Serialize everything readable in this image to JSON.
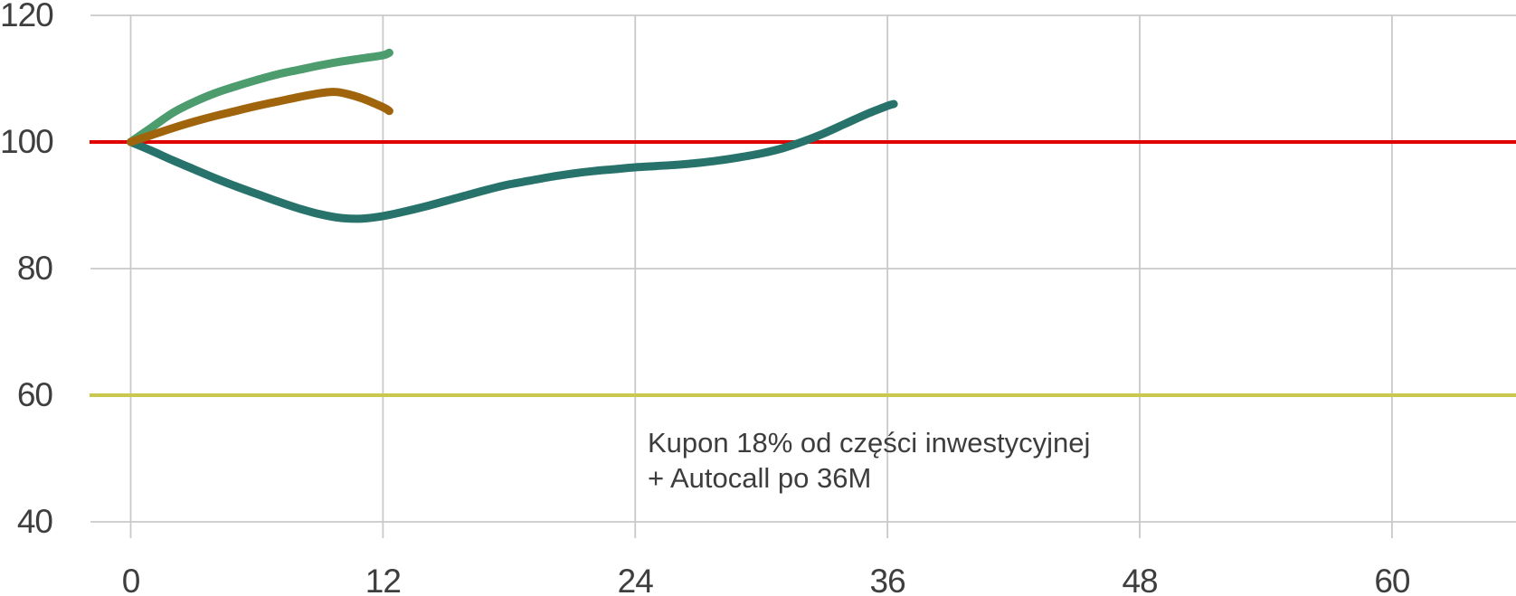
{
  "chart_data": {
    "type": "line",
    "title": "",
    "xlabel": "",
    "ylabel": "",
    "grid": true,
    "grid_color": "#c9c9c9",
    "axis_text_color": "#3e3e3e",
    "x_axis": {
      "ticks": [
        0,
        12,
        24,
        36,
        48,
        60
      ],
      "min": 0,
      "max": 66
    },
    "y_axis": {
      "ticks": [
        120,
        100,
        80,
        60,
        40
      ],
      "min": 40,
      "max": 120
    },
    "reference_lines": [
      {
        "id": "red-reference-line-100",
        "value": 100,
        "color": "#e10000"
      },
      {
        "id": "olive-reference-line-60",
        "value": 60,
        "color": "#c9c84f"
      }
    ],
    "series": [
      {
        "id": "green-line",
        "color": "#4c9c6e",
        "x": [
          0,
          1,
          2,
          3,
          4,
          5,
          6,
          7,
          8,
          9,
          10,
          11,
          12,
          12.3
        ],
        "values": [
          100,
          102.3,
          104.6,
          106.3,
          107.7,
          108.8,
          109.8,
          110.7,
          111.4,
          112.1,
          112.7,
          113.2,
          113.7,
          114.1
        ]
      },
      {
        "id": "teal-line",
        "color": "#27736c",
        "x": [
          0,
          1,
          2,
          3,
          4,
          5,
          6,
          7,
          8,
          9,
          10,
          11,
          12,
          13,
          14,
          15,
          16,
          17,
          18,
          19,
          20,
          21,
          22,
          23,
          24,
          25,
          26,
          27,
          28,
          29,
          30,
          31,
          32,
          33,
          34,
          35,
          36,
          36.3
        ],
        "values": [
          100,
          98.6,
          97.1,
          95.7,
          94.3,
          93.0,
          91.8,
          90.6,
          89.5,
          88.6,
          88.0,
          87.9,
          88.3,
          89.0,
          89.8,
          90.7,
          91.6,
          92.5,
          93.3,
          93.9,
          94.5,
          95.0,
          95.4,
          95.7,
          96.0,
          96.2,
          96.4,
          96.7,
          97.1,
          97.6,
          98.2,
          99.0,
          100.1,
          101.4,
          102.9,
          104.4,
          105.7,
          106.0
        ]
      },
      {
        "id": "brown-line",
        "color": "#a0650c",
        "x": [
          0,
          1,
          2,
          3,
          4,
          5,
          6,
          7,
          8,
          9,
          9.5,
          10,
          11,
          12,
          12.3
        ],
        "values": [
          100,
          101.1,
          102.2,
          103.2,
          104.1,
          104.9,
          105.7,
          106.4,
          107.1,
          107.7,
          107.9,
          107.8,
          106.9,
          105.5,
          104.9
        ]
      }
    ],
    "annotation": {
      "line1": "Kupon 18% od części inwestycyjnej",
      "line2": "+ Autocall po 36M"
    }
  }
}
